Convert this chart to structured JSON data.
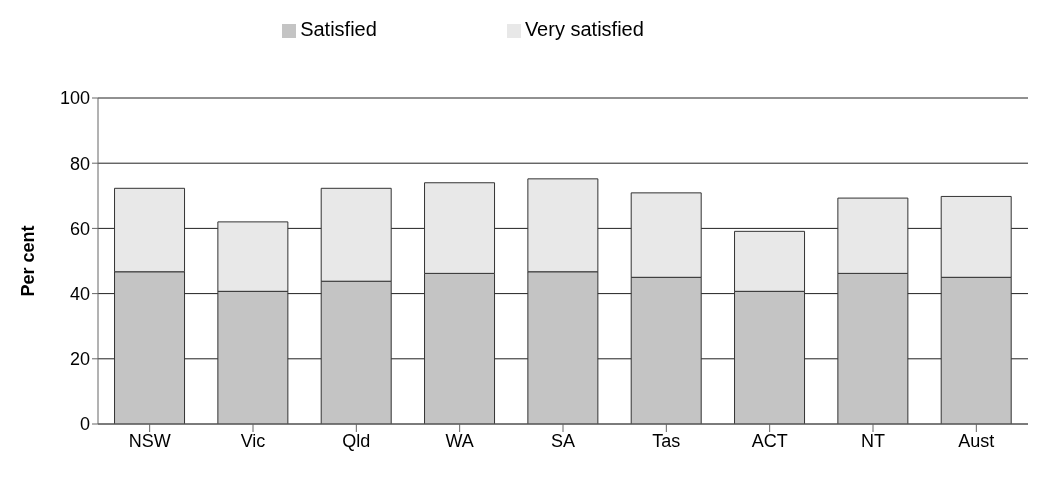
{
  "chart_data": {
    "type": "bar",
    "stacked": true,
    "ylabel": "Per cent",
    "categories": [
      "NSW",
      "Vic",
      "Qld",
      "WA",
      "SA",
      "Tas",
      "ACT",
      "NT",
      "Aust"
    ],
    "series": [
      {
        "name": "Satisfied",
        "color": "#c4c4c4",
        "values": [
          46.7,
          40.7,
          43.8,
          46.2,
          46.7,
          45.0,
          40.7,
          46.2,
          45.0
        ]
      },
      {
        "name": "Very satisfied",
        "color": "#e8e8e8",
        "values": [
          25.6,
          21.3,
          28.5,
          27.8,
          28.5,
          25.9,
          18.4,
          23.1,
          24.8
        ]
      }
    ],
    "ylim": [
      0,
      100
    ],
    "yticks": [
      0,
      20,
      40,
      60,
      80,
      100
    ],
    "grid": "y",
    "legend": "top"
  }
}
